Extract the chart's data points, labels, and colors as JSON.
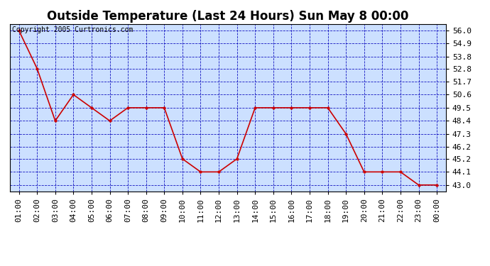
{
  "title": "Outside Temperature (Last 24 Hours) Sun May 8 00:00",
  "copyright": "Copyright 2005 Curtronics.com",
  "x_labels": [
    "01:00",
    "02:00",
    "03:00",
    "04:00",
    "05:00",
    "06:00",
    "07:00",
    "08:00",
    "09:00",
    "10:00",
    "11:00",
    "12:00",
    "13:00",
    "14:00",
    "15:00",
    "16:00",
    "17:00",
    "18:00",
    "19:00",
    "20:00",
    "21:00",
    "22:00",
    "23:00",
    "00:00"
  ],
  "x_values": [
    1,
    2,
    3,
    4,
    5,
    6,
    7,
    8,
    9,
    10,
    11,
    12,
    13,
    14,
    15,
    16,
    17,
    18,
    19,
    20,
    21,
    22,
    23,
    24
  ],
  "y_values": [
    56.0,
    52.8,
    48.4,
    50.6,
    49.5,
    48.4,
    49.5,
    49.5,
    49.5,
    45.2,
    44.1,
    44.1,
    45.2,
    49.5,
    49.5,
    49.5,
    49.5,
    49.5,
    47.3,
    44.1,
    44.1,
    44.1,
    43.0,
    43.0
  ],
  "y_ticks": [
    43.0,
    44.1,
    45.2,
    46.2,
    47.3,
    48.4,
    49.5,
    50.6,
    51.7,
    52.8,
    53.8,
    54.9,
    56.0
  ],
  "ylim": [
    42.45,
    56.55
  ],
  "xlim": [
    0.5,
    24.5
  ],
  "line_color": "#cc0000",
  "marker_color": "#cc0000",
  "fig_bg_color": "#ffffff",
  "plot_bg_color": "#cce0ff",
  "grid_color": "#0000bb",
  "title_fontsize": 12,
  "tick_fontsize": 8,
  "copyright_fontsize": 7
}
